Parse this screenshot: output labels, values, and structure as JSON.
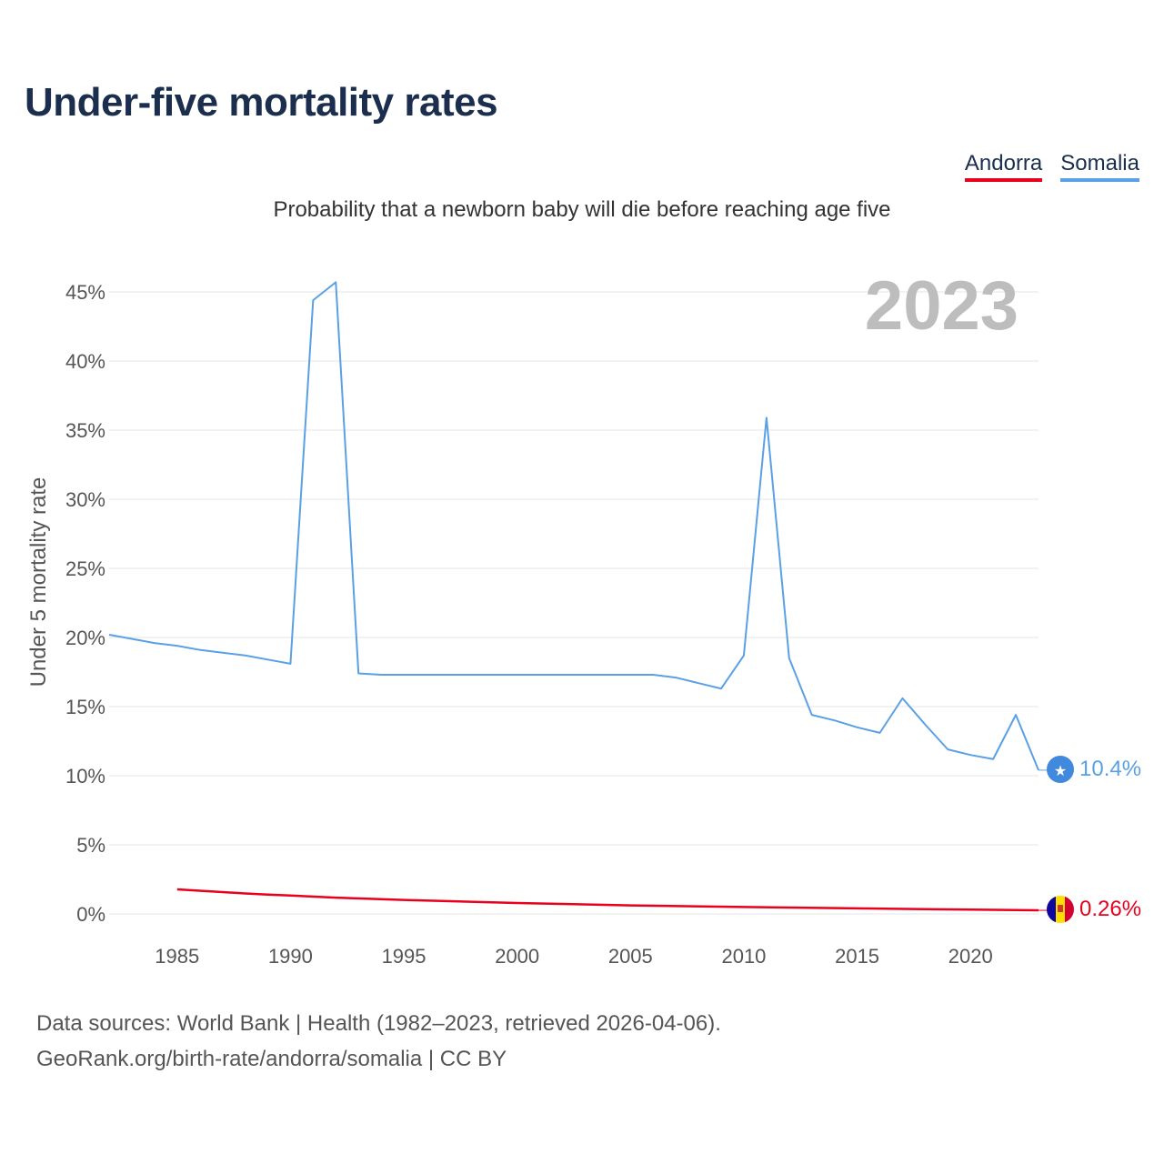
{
  "title": "Under-five mortality rates",
  "subtitle": "Probability that a newborn baby will die before reaching age five",
  "legend": {
    "andorra": "Andorra",
    "somalia": "Somalia"
  },
  "source_line1": "Data sources: World Bank | Health (1982–2023, retrieved 2026-04-06).",
  "source_line2": "GeoRank.org/birth-rate/andorra/somalia | CC BY",
  "colors": {
    "andorra": "#e8001c",
    "somalia": "#5aa0e6",
    "grid": "#e6e6e6",
    "year": "#bdbdbd"
  },
  "chart_data": {
    "type": "line",
    "title": "Under-five mortality rates",
    "ylabel": "Under 5 mortality rate",
    "xlabel": "",
    "year_label": "2023",
    "xlim": [
      1982,
      2023
    ],
    "ylim": [
      0,
      45
    ],
    "x_ticks": [
      1985,
      1990,
      1995,
      2000,
      2005,
      2010,
      2015,
      2020
    ],
    "y_ticks": [
      0,
      5,
      10,
      15,
      20,
      25,
      30,
      35,
      40,
      45
    ],
    "y_tick_labels": [
      "0%",
      "5%",
      "10%",
      "15%",
      "20%",
      "25%",
      "30%",
      "35%",
      "40%",
      "45%"
    ],
    "series": [
      {
        "name": "Somalia",
        "color": "#5aa0e6",
        "end_label": "10.4%",
        "points": [
          [
            1982,
            20.2
          ],
          [
            1983,
            19.9
          ],
          [
            1984,
            19.6
          ],
          [
            1985,
            19.4
          ],
          [
            1986,
            19.1
          ],
          [
            1987,
            18.9
          ],
          [
            1988,
            18.7
          ],
          [
            1989,
            18.4
          ],
          [
            1990,
            18.1
          ],
          [
            1991,
            44.4
          ],
          [
            1992,
            45.7
          ],
          [
            1993,
            17.4
          ],
          [
            1994,
            17.3
          ],
          [
            1995,
            17.3
          ],
          [
            2000,
            17.3
          ],
          [
            2005,
            17.3
          ],
          [
            2006,
            17.3
          ],
          [
            2007,
            17.1
          ],
          [
            2008,
            16.7
          ],
          [
            2009,
            16.3
          ],
          [
            2010,
            18.7
          ],
          [
            2011,
            35.9
          ],
          [
            2012,
            18.5
          ],
          [
            2013,
            14.4
          ],
          [
            2014,
            14.0
          ],
          [
            2015,
            13.5
          ],
          [
            2016,
            13.1
          ],
          [
            2017,
            15.6
          ],
          [
            2018,
            13.7
          ],
          [
            2019,
            11.9
          ],
          [
            2020,
            11.5
          ],
          [
            2021,
            11.2
          ],
          [
            2022,
            14.4
          ],
          [
            2023,
            10.4
          ]
        ]
      },
      {
        "name": "Andorra",
        "color": "#e8001c",
        "end_label": "0.26%",
        "points": [
          [
            1985,
            1.78
          ],
          [
            1986,
            1.68
          ],
          [
            1987,
            1.58
          ],
          [
            1988,
            1.48
          ],
          [
            1989,
            1.4
          ],
          [
            1990,
            1.33
          ],
          [
            1992,
            1.18
          ],
          [
            1995,
            1.01
          ],
          [
            2000,
            0.79
          ],
          [
            2005,
            0.62
          ],
          [
            2010,
            0.5
          ],
          [
            2015,
            0.4
          ],
          [
            2020,
            0.31
          ],
          [
            2023,
            0.26
          ]
        ]
      }
    ]
  }
}
